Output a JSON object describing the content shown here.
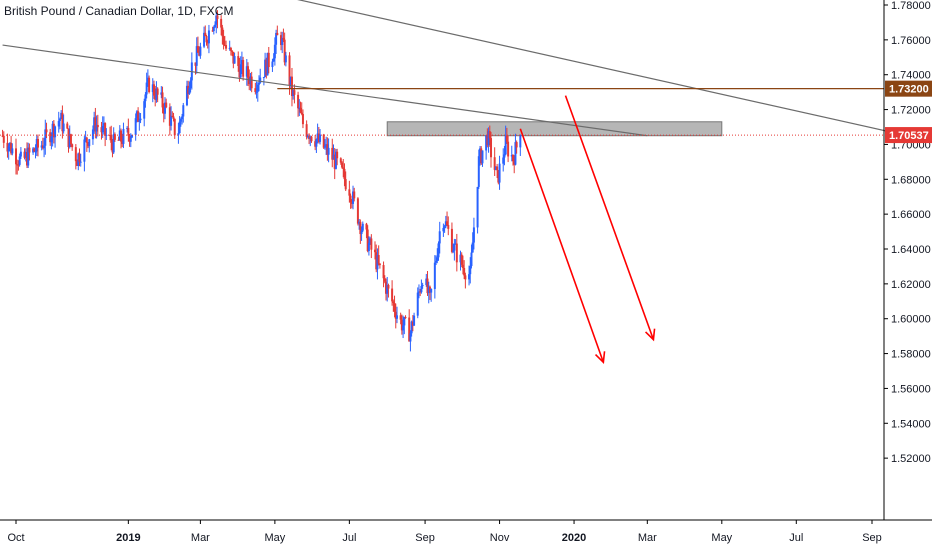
{
  "header": {
    "title": "British Pound / Canadian Dollar, 1D, FXCM"
  },
  "colors": {
    "up": "#2962ff",
    "down": "#e53935",
    "trendline": "#6b6b6b",
    "resistance": "#8b4513",
    "current_price": "#e53935",
    "zone": "#9e9e9e",
    "arrow": "#ff0000",
    "axis": "#000000"
  },
  "chart_data": {
    "type": "candlestick",
    "symbol": "British Pound / Canadian Dollar",
    "timeframe": "1D",
    "source": "FXCM",
    "x_ticks": [
      {
        "label": "Oct",
        "date": "2018-10-01"
      },
      {
        "label": "2019",
        "date": "2019-01-01",
        "bold": true
      },
      {
        "label": "Mar",
        "date": "2019-03-01"
      },
      {
        "label": "May",
        "date": "2019-05-01"
      },
      {
        "label": "Jul",
        "date": "2019-07-01"
      },
      {
        "label": "Sep",
        "date": "2019-09-01"
      },
      {
        "label": "Nov",
        "date": "2019-11-01"
      },
      {
        "label": "2020",
        "date": "2020-01-01",
        "bold": true
      },
      {
        "label": "Mar",
        "date": "2020-03-01"
      },
      {
        "label": "May",
        "date": "2020-05-01"
      },
      {
        "label": "Jul",
        "date": "2020-07-01"
      },
      {
        "label": "Sep",
        "date": "2020-09-01"
      }
    ],
    "y_ticks": [
      "1.78000",
      "1.76000",
      "1.74000",
      "1.72000",
      "1.70000",
      "1.68000",
      "1.66000",
      "1.64000",
      "1.62000",
      "1.60000",
      "1.58000",
      "1.56000",
      "1.54000",
      "1.52000"
    ],
    "ylim": [
      1.5,
      1.78
    ],
    "price_path": [
      [
        "2018-09-20",
        1.705
      ],
      [
        "2018-10-05",
        1.69
      ],
      [
        "2018-10-22",
        1.7
      ],
      [
        "2018-11-06",
        1.715
      ],
      [
        "2018-11-20",
        1.692
      ],
      [
        "2018-12-05",
        1.712
      ],
      [
        "2018-12-20",
        1.7
      ],
      [
        "2019-01-05",
        1.708
      ],
      [
        "2019-01-18",
        1.735
      ],
      [
        "2019-02-01",
        1.72
      ],
      [
        "2019-02-10",
        1.705
      ],
      [
        "2019-02-22",
        1.745
      ],
      [
        "2019-03-05",
        1.76
      ],
      [
        "2019-03-14",
        1.775
      ],
      [
        "2019-03-22",
        1.755
      ],
      [
        "2019-04-01",
        1.745
      ],
      [
        "2019-04-15",
        1.735
      ],
      [
        "2019-04-28",
        1.75
      ],
      [
        "2019-05-05",
        1.765
      ],
      [
        "2019-05-15",
        1.73
      ],
      [
        "2019-05-25",
        1.71
      ],
      [
        "2019-06-08",
        1.7
      ],
      [
        "2019-06-20",
        1.69
      ],
      [
        "2019-07-01",
        1.675
      ],
      [
        "2019-07-12",
        1.65
      ],
      [
        "2019-07-22",
        1.635
      ],
      [
        "2019-08-02",
        1.615
      ],
      [
        "2019-08-12",
        1.598
      ],
      [
        "2019-08-20",
        1.592
      ],
      [
        "2019-08-30",
        1.625
      ],
      [
        "2019-09-05",
        1.61
      ],
      [
        "2019-09-15",
        1.66
      ],
      [
        "2019-09-25",
        1.64
      ],
      [
        "2019-10-02",
        1.63
      ],
      [
        "2019-10-08",
        1.625
      ],
      [
        "2019-10-15",
        1.69
      ],
      [
        "2019-10-22",
        1.705
      ],
      [
        "2019-10-30",
        1.68
      ],
      [
        "2019-11-06",
        1.7
      ],
      [
        "2019-11-12",
        1.692
      ],
      [
        "2019-11-18",
        1.7054
      ]
    ],
    "last_price": "1.70537",
    "annotations": {
      "resistance_level": {
        "value": 1.732,
        "label": "1.73200",
        "from": "2019-05-03"
      },
      "current_price_line": {
        "value": 1.70537,
        "label": "1.70537"
      },
      "supply_zone": {
        "from": "2019-08-01",
        "to": "2020-05-01",
        "low": 1.705,
        "high": 1.713
      },
      "trendlines": [
        {
          "from": [
            "2019-02-01",
            1.8
          ],
          "to": [
            "2020-09-30",
            1.705
          ]
        },
        {
          "from": [
            "2018-09-20",
            1.757
          ],
          "to": [
            "2020-03-01",
            1.705
          ]
        }
      ],
      "arrows": [
        {
          "from": [
            "2019-11-18",
            1.709
          ],
          "to": [
            "2020-01-25",
            1.575
          ]
        },
        {
          "from": [
            "2019-12-25",
            1.728
          ],
          "to": [
            "2020-03-06",
            1.588
          ]
        }
      ]
    }
  }
}
